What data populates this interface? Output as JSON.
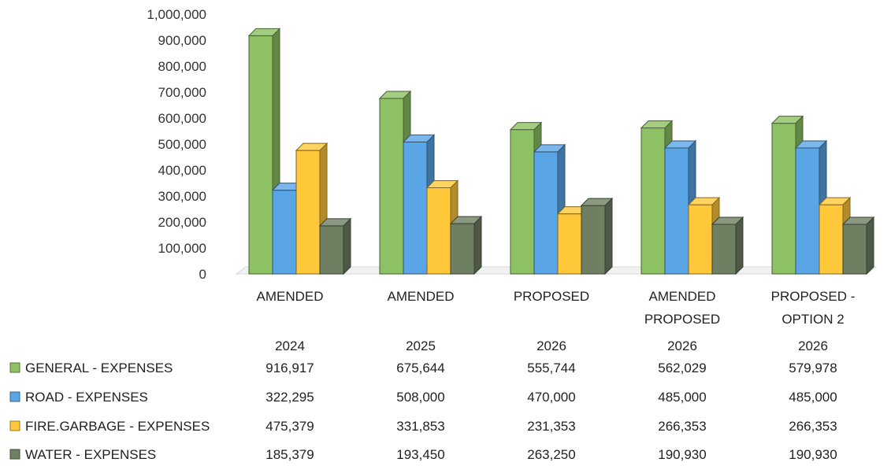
{
  "chart_data": {
    "type": "bar",
    "style": "3d-clustered-column-with-data-table",
    "categories": [
      {
        "label": [
          "AMENDED"
        ],
        "year": "2024"
      },
      {
        "label": [
          "AMENDED"
        ],
        "year": "2025"
      },
      {
        "label": [
          "PROPOSED"
        ],
        "year": "2026"
      },
      {
        "label": [
          "AMENDED",
          "PROPOSED"
        ],
        "year": "2026"
      },
      {
        "label": [
          "PROPOSED -",
          "OPTION 2"
        ],
        "year": "2026"
      }
    ],
    "series": [
      {
        "name": "GENERAL - EXPENSES",
        "color": "#8dc163",
        "values": [
          916917,
          675644,
          555744,
          562029,
          579978
        ],
        "display": [
          "916,917",
          "675,644",
          "555,744",
          "562,029",
          "579,978"
        ]
      },
      {
        "name": "ROAD - EXPENSES",
        "color": "#5aa5e6",
        "values": [
          322295,
          508000,
          470000,
          485000,
          485000
        ],
        "display": [
          "322,295",
          "508,000",
          "470,000",
          "485,000",
          "485,000"
        ]
      },
      {
        "name": "FIRE.GARBAGE - EXPENSES",
        "color": "#ffc83a",
        "values": [
          475379,
          331853,
          231353,
          266353,
          266353
        ],
        "display": [
          "475,379",
          "331,853",
          "231,353",
          "266,353",
          "266,353"
        ]
      },
      {
        "name": "WATER - EXPENSES",
        "color": "#6f7f62",
        "values": [
          185379,
          193450,
          263250,
          190930,
          190930
        ],
        "display": [
          "185,379",
          "193,450",
          "263,250",
          "190,930",
          "190,930"
        ]
      }
    ],
    "yticks": [
      "0",
      "100,000",
      "200,000",
      "300,000",
      "400,000",
      "500,000",
      "600,000",
      "700,000",
      "800,000",
      "900,000",
      "1,000,000"
    ],
    "ylim": [
      0,
      1000000
    ],
    "grid": false,
    "legend": "data-table-left"
  }
}
